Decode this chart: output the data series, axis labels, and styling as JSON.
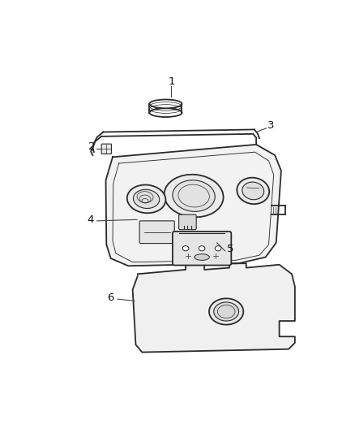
{
  "background_color": "#ffffff",
  "line_color": "#2a2a2a",
  "fig_width": 4.38,
  "fig_height": 5.33,
  "dpi": 100,
  "label_fontsize": 9.5,
  "leader_line_color": "#444444"
}
